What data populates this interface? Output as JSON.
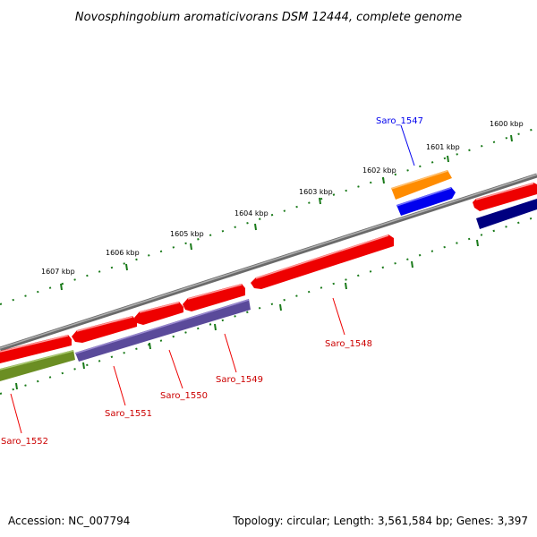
{
  "title": "Novosphingobium aromaticivorans DSM 12444, complete genome",
  "footer": {
    "accession": "Accession: NC_007794",
    "stats": "Topology: circular; Length: 3,561,584 bp; Genes: 3,397"
  },
  "tick_labels": [
    "1600 kbp",
    "1601 kbp",
    "1602 kbp",
    "1603 kbp",
    "1604 kbp",
    "1605 kbp",
    "1606 kbp",
    "1607 kbp"
  ],
  "genes": [
    {
      "name": "Saro_1547",
      "color": "#0000cc"
    },
    {
      "name": "Saro_1548",
      "color": "#cc0000"
    },
    {
      "name": "Saro_1549",
      "color": "#cc0000"
    },
    {
      "name": "Saro_1550",
      "color": "#cc0000"
    },
    {
      "name": "Saro_1551",
      "color": "#cc0000"
    },
    {
      "name": "Saro_1552",
      "color": "#cc0000"
    }
  ],
  "colors": {
    "backbone": "#808080",
    "ticks": "#1a7a1a",
    "forward_genes": "#ff0000",
    "reverse_purple": "#5a4a9a",
    "reverse_olive": "#6b8e23",
    "orange_feature": "#ff8c00",
    "blue_feature": "#0000ff",
    "navy_feature": "#000080"
  }
}
